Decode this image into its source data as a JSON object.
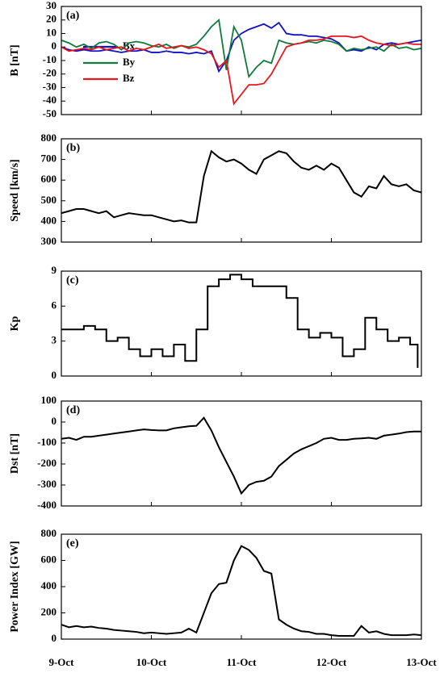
{
  "chart_data": [
    {
      "type": "line",
      "title": "(a)",
      "ylabel": "B [nT]",
      "x": [
        0,
        2,
        4,
        6,
        8,
        10,
        12,
        14,
        16,
        18,
        20,
        22,
        24,
        26,
        28,
        30,
        32,
        34,
        36,
        38,
        40,
        42,
        44,
        46,
        48,
        50,
        52,
        54,
        56,
        58,
        60,
        62,
        64,
        66,
        68,
        70,
        72,
        74,
        76,
        78,
        80,
        82,
        84,
        86,
        88,
        90,
        92,
        94,
        96
      ],
      "series": [
        {
          "name": "Bx",
          "color": "#1010c8",
          "values": [
            0,
            -2,
            -3,
            -2,
            -3,
            -3,
            -2,
            -3,
            -4,
            -3,
            -3,
            -2,
            -4,
            -4,
            -3,
            -4,
            -4,
            -5,
            -4,
            -5,
            -3,
            -18,
            -10,
            5,
            10,
            13,
            15,
            17,
            14,
            18,
            10,
            9,
            9,
            8,
            8,
            7,
            6,
            3,
            -3,
            -2,
            -3,
            0,
            -2,
            2,
            3,
            2,
            3,
            4,
            5
          ]
        },
        {
          "name": "By",
          "color": "#0e7a3c",
          "values": [
            5,
            3,
            0,
            2,
            -1,
            3,
            4,
            2,
            -2,
            3,
            4,
            3,
            1,
            0,
            2,
            -1,
            1,
            0,
            2,
            8,
            15,
            20,
            -17,
            15,
            5,
            -22,
            -15,
            -10,
            -12,
            5,
            3,
            2,
            3,
            4,
            3,
            5,
            4,
            2,
            -3,
            -1,
            -2,
            -1,
            0,
            -3,
            2,
            -1,
            0,
            -2,
            -1
          ]
        },
        {
          "name": "Bz",
          "color": "#e8161a",
          "values": [
            0,
            -3,
            -2,
            -1,
            -2,
            0,
            -2,
            -1,
            0,
            -3,
            -1,
            -2,
            0,
            2,
            -1,
            0,
            1,
            -1,
            0,
            -2,
            -5,
            -15,
            -10,
            -42,
            -35,
            -28,
            -28,
            -27,
            -20,
            -10,
            0,
            2,
            3,
            5,
            5,
            6,
            8,
            8,
            8,
            7,
            8,
            5,
            3,
            2,
            1,
            2,
            3,
            2,
            2
          ]
        }
      ],
      "xlim": [
        0,
        96
      ],
      "xticks": [
        0,
        24,
        48,
        72,
        96
      ],
      "ylim": [
        -50,
        30
      ],
      "yticks": [
        -50,
        -40,
        -30,
        -20,
        -10,
        0,
        10,
        20,
        30
      ]
    },
    {
      "type": "line",
      "title": "(b)",
      "ylabel": "Speed [km/s]",
      "x": [
        0,
        2,
        4,
        6,
        8,
        10,
        12,
        14,
        16,
        18,
        20,
        22,
        24,
        26,
        28,
        30,
        32,
        34,
        36,
        38,
        40,
        42,
        44,
        46,
        48,
        50,
        52,
        54,
        56,
        58,
        60,
        62,
        64,
        66,
        68,
        70,
        72,
        74,
        76,
        78,
        80,
        82,
        84,
        86,
        88,
        90,
        92,
        94,
        96
      ],
      "series": [
        {
          "color": "#000000",
          "values": [
            440,
            450,
            460,
            460,
            450,
            440,
            450,
            420,
            430,
            440,
            435,
            430,
            430,
            420,
            410,
            400,
            405,
            395,
            395,
            620,
            740,
            710,
            690,
            700,
            680,
            650,
            630,
            700,
            720,
            740,
            730,
            690,
            660,
            650,
            670,
            650,
            680,
            660,
            600,
            540,
            520,
            570,
            560,
            620,
            580,
            570,
            580,
            550,
            540
          ]
        }
      ],
      "xlim": [
        0,
        96
      ],
      "xticks": [
        0,
        24,
        48,
        72,
        96
      ],
      "ylim": [
        300,
        800
      ],
      "yticks": [
        300,
        400,
        500,
        600,
        700,
        800
      ]
    },
    {
      "type": "line",
      "title": "(c)",
      "ylabel": "Kp",
      "drawstyle": "steps-post",
      "x": [
        0,
        3,
        6,
        9,
        12,
        15,
        18,
        21,
        24,
        27,
        30,
        33,
        36,
        39,
        42,
        45,
        48,
        51,
        54,
        57,
        60,
        63,
        66,
        69,
        72,
        75,
        78,
        81,
        84,
        87,
        90,
        93,
        95
      ],
      "series": [
        {
          "color": "#000000",
          "values": [
            4,
            4,
            4.3,
            4,
            3,
            3.3,
            2.3,
            1.7,
            2.3,
            1.7,
            2.7,
            1.3,
            4,
            7.7,
            8.3,
            8.7,
            8.3,
            7.7,
            7.7,
            7.7,
            6.7,
            4,
            3.3,
            3.7,
            3.3,
            1.7,
            2.3,
            5,
            4,
            3,
            3.3,
            2.7,
            0.7
          ]
        }
      ],
      "xlim": [
        0,
        96
      ],
      "xticks": [
        0,
        24,
        48,
        72,
        96
      ],
      "ylim": [
        0,
        9
      ],
      "yticks": [
        0,
        3,
        6,
        9
      ]
    },
    {
      "type": "line",
      "title": "(d)",
      "ylabel": "Dst [nT]",
      "x": [
        0,
        2,
        4,
        6,
        8,
        10,
        12,
        14,
        16,
        18,
        20,
        22,
        24,
        26,
        28,
        30,
        32,
        34,
        36,
        38,
        40,
        42,
        44,
        46,
        48,
        50,
        52,
        54,
        56,
        58,
        60,
        62,
        64,
        66,
        68,
        70,
        72,
        74,
        76,
        78,
        80,
        82,
        84,
        86,
        88,
        90,
        92,
        94,
        96
      ],
      "series": [
        {
          "color": "#000000",
          "values": [
            -80,
            -75,
            -85,
            -70,
            -70,
            -65,
            -60,
            -55,
            -50,
            -45,
            -40,
            -35,
            -38,
            -40,
            -40,
            -30,
            -25,
            -20,
            -18,
            20,
            -40,
            -120,
            -190,
            -260,
            -340,
            -300,
            -285,
            -280,
            -260,
            -210,
            -180,
            -150,
            -130,
            -115,
            -100,
            -80,
            -75,
            -85,
            -85,
            -80,
            -78,
            -75,
            -80,
            -65,
            -60,
            -55,
            -48,
            -45,
            -45
          ]
        }
      ],
      "xlim": [
        0,
        96
      ],
      "xticks": [
        0,
        24,
        48,
        72,
        96
      ],
      "ylim": [
        -400,
        100
      ],
      "yticks": [
        -400,
        -300,
        -200,
        -100,
        0,
        100
      ]
    },
    {
      "type": "line",
      "title": "(e)",
      "ylabel": "Power Index [GW]",
      "x": [
        0,
        2,
        4,
        6,
        8,
        10,
        12,
        14,
        16,
        18,
        20,
        22,
        24,
        26,
        28,
        30,
        32,
        34,
        36,
        38,
        40,
        42,
        44,
        46,
        48,
        50,
        52,
        54,
        56,
        58,
        60,
        62,
        64,
        66,
        68,
        70,
        72,
        74,
        76,
        78,
        80,
        82,
        84,
        86,
        88,
        90,
        92,
        94,
        96
      ],
      "series": [
        {
          "color": "#000000",
          "values": [
            110,
            90,
            100,
            90,
            95,
            85,
            80,
            70,
            65,
            60,
            55,
            45,
            50,
            45,
            40,
            45,
            50,
            80,
            50,
            200,
            350,
            420,
            430,
            600,
            710,
            680,
            620,
            520,
            500,
            150,
            110,
            80,
            60,
            55,
            40,
            40,
            30,
            25,
            25,
            25,
            100,
            50,
            60,
            40,
            30,
            30,
            30,
            35,
            30
          ]
        }
      ],
      "xlim": [
        0,
        96
      ],
      "xticks": [
        {
          "value": 0,
          "label": "9-Oct"
        },
        {
          "value": 24,
          "label": "10-Oct"
        },
        {
          "value": 48,
          "label": "11-Oct"
        },
        {
          "value": 72,
          "label": "12-Oct"
        },
        {
          "value": 96,
          "label": "13-Oct"
        }
      ],
      "ylim": [
        0,
        800
      ],
      "yticks": [
        0,
        200,
        400,
        600,
        800
      ]
    }
  ]
}
